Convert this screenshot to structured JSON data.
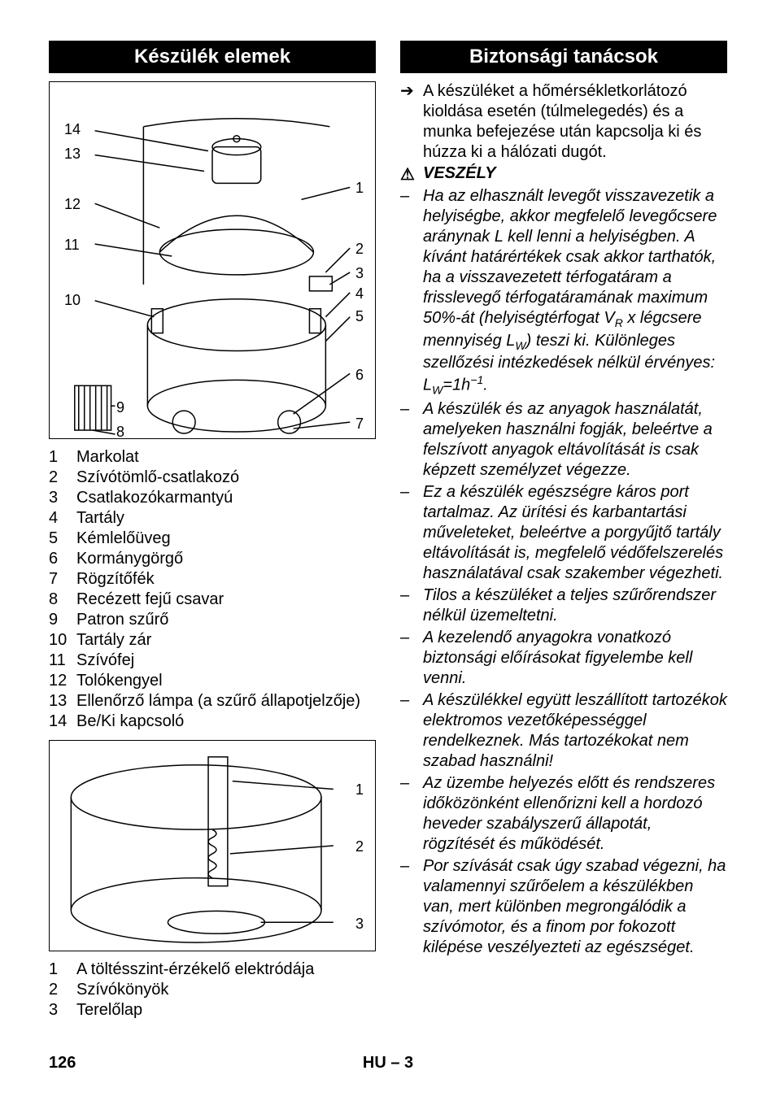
{
  "left": {
    "header": "Készülék elemek",
    "diagram1_numbers": [
      "14",
      "13",
      "12",
      "11",
      "10",
      "9",
      "8",
      "1",
      "2",
      "3",
      "4",
      "5",
      "6",
      "7"
    ],
    "parts1": [
      {
        "n": "1",
        "l": "Markolat"
      },
      {
        "n": "2",
        "l": "Szívótömlő-csatlakozó"
      },
      {
        "n": "3",
        "l": "Csatlakozókarmantyú"
      },
      {
        "n": "4",
        "l": "Tartály"
      },
      {
        "n": "5",
        "l": "Kémlelőüveg"
      },
      {
        "n": "6",
        "l": "Kormánygörgő"
      },
      {
        "n": "7",
        "l": "Rögzítőfék"
      },
      {
        "n": "8",
        "l": "Recézett fejű csavar"
      },
      {
        "n": "9",
        "l": "Patron szűrő"
      },
      {
        "n": "10",
        "l": "Tartály zár"
      },
      {
        "n": "11",
        "l": "Szívófej"
      },
      {
        "n": "12",
        "l": "Tolókengyel"
      },
      {
        "n": "13",
        "l": "Ellenőrző lámpa (a szűrő állapotjelzője)"
      },
      {
        "n": "14",
        "l": "Be/Ki kapcsoló"
      }
    ],
    "diagram2_numbers": [
      "1",
      "2",
      "3"
    ],
    "parts2": [
      {
        "n": "1",
        "l": "A töltésszint-érzékelő elektródája"
      },
      {
        "n": "2",
        "l": "Szívókönyök"
      },
      {
        "n": "3",
        "l": "Terelőlap"
      }
    ]
  },
  "right": {
    "header": "Biztonsági tanácsok",
    "intro_bullet": "➔",
    "intro_text": "A készüléket a hőmérsékletkorlátozó kioldása esetén (túlmelegedés) és a munka befejezése után kapcsolja ki és húzza ki a hálózati dugót.",
    "danger_icon": "⚠",
    "danger_label": "VESZÉLY",
    "items": [
      "Ha az elhasznált levegőt visszavezetik a helyiségbe, akkor megfelelő levegőcsere aránynak L kell lenni a helyiségben. A kívánt határértékek csak akkor tarthatók, ha a visszavezetett térfogatáram a frisslevegő térfogatáramának maximum 50%-át (helyiségtérfogat V<sub>R</sub> x légcsere mennyiség L<sub>W</sub>) teszi ki. Különleges szellőzési intézkedések nélkül érvényes: L<sub>W</sub>=1h<sup>−1</sup>.",
      "A készülék és az anyagok használatát, amelyeken használni fogják, beleértve a felszívott anyagok eltávolítását is csak képzett személyzet végezze.",
      "Ez a készülék egészségre káros port tartalmaz. Az ürítési és karbantartási műveleteket, beleértve a porgyűjtő tartály eltávolítását is, megfelelő védőfelszerelés használatával csak szakember végezheti.",
      "Tilos a készüléket a teljes szűrőrendszer nélkül üzemeltetni.",
      "A kezelendő anyagokra vonatkozó biztonsági előírásokat figyelembe kell venni.",
      "A készülékkel együtt leszállított tartozékok elektromos vezetőképességgel rendelkeznek. Más tartozékokat nem szabad használni!",
      "Az üzembe helyezés előtt és rendszeres időközönként ellenőrizni kell a hordozó heveder szabályszerű állapotát, rögzítését és működését.",
      "Por szívását csak úgy szabad végezni, ha valamennyi szűrőelem a készülékben van, mert különben megrongálódik a szívómotor, és a finom por fokozott kilépése veszélyezteti az egészséget."
    ]
  },
  "footer": {
    "page": "126",
    "center": "HU – 3"
  },
  "colors": {
    "header_bg": "#000000",
    "header_fg": "#ffffff"
  }
}
